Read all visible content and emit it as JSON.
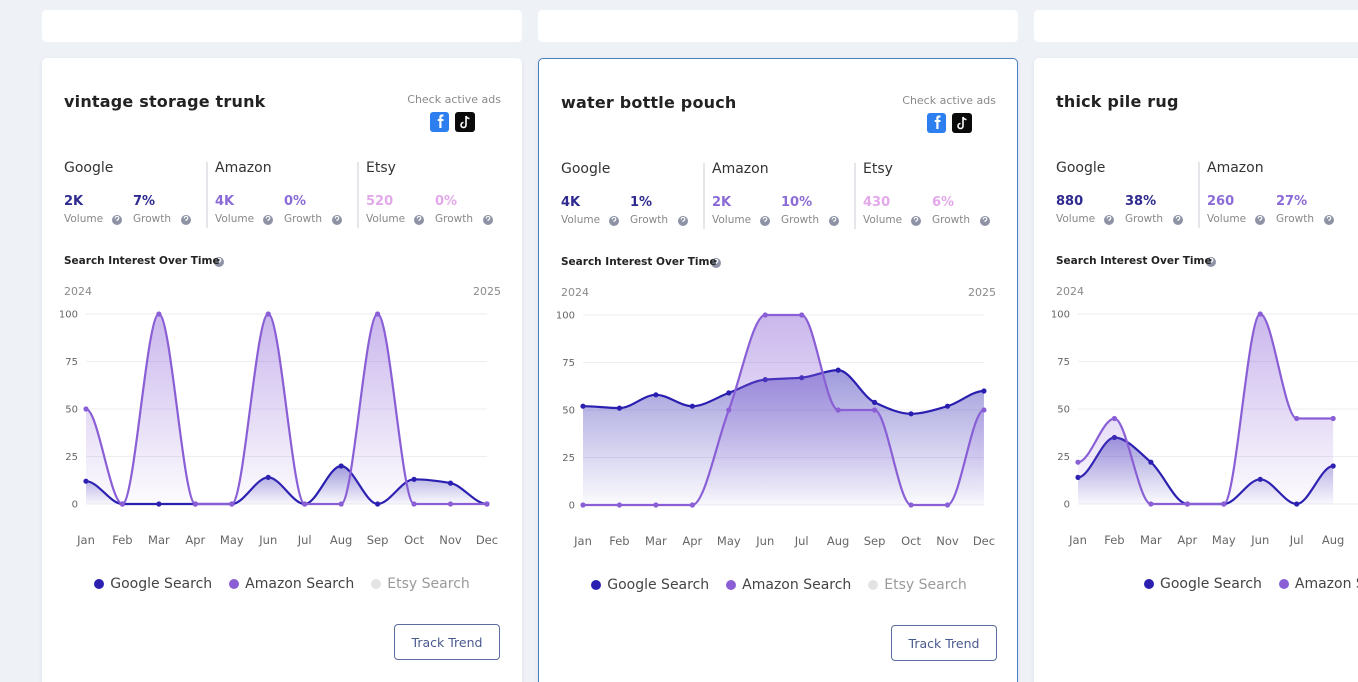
{
  "cards": [
    {
      "title": "vintage storage trunk",
      "ads_label": "Check active ads",
      "metrics": [
        {
          "source": "Google",
          "color": "#2e2a8f",
          "volume": "2K",
          "volume_label": "Volume",
          "growth": "7%",
          "growth_label": "Growth"
        },
        {
          "source": "Amazon",
          "color": "#8b6cd6",
          "volume": "4K",
          "volume_label": "Volume",
          "growth": "0%",
          "growth_label": "Growth"
        },
        {
          "source": "Etsy",
          "color": "#e3a9ea",
          "volume": "520",
          "volume_label": "Volume",
          "growth": "0%",
          "growth_label": "Growth"
        }
      ],
      "chart": {
        "type": "line",
        "title": "Search Interest Over Time",
        "year_start": "2024",
        "year_end": "2025",
        "categories": [
          "Jan",
          "Feb",
          "Mar",
          "Apr",
          "May",
          "Jun",
          "Jul",
          "Aug",
          "Sep",
          "Oct",
          "Nov",
          "Dec"
        ],
        "ylim": [
          0,
          100
        ],
        "yticks": [
          0,
          25,
          50,
          75,
          100
        ],
        "grid": true,
        "series": [
          {
            "name": "Google Search",
            "color": "#2a1fb0",
            "values": [
              12,
              0,
              0,
              0,
              0,
              14,
              0,
              20,
              0,
              13,
              11,
              0
            ]
          },
          {
            "name": "Amazon Search",
            "color": "#8a5fd6",
            "values": [
              50,
              0,
              100,
              0,
              0,
              100,
              0,
              0,
              100,
              0,
              0,
              0
            ]
          },
          {
            "name": "Etsy Search",
            "color": "#e3e3e3"
          }
        ]
      },
      "button": "Track Trend"
    },
    {
      "title": "water bottle pouch",
      "ads_label": "Check active ads",
      "metrics": [
        {
          "source": "Google",
          "color": "#2e2a8f",
          "volume": "4K",
          "volume_label": "Volume",
          "growth": "1%",
          "growth_label": "Growth"
        },
        {
          "source": "Amazon",
          "color": "#8b6cd6",
          "volume": "2K",
          "volume_label": "Volume",
          "growth": "10%",
          "growth_label": "Growth"
        },
        {
          "source": "Etsy",
          "color": "#e3a9ea",
          "volume": "430",
          "volume_label": "Volume",
          "growth": "6%",
          "growth_label": "Growth"
        }
      ],
      "chart": {
        "type": "line",
        "title": "Search Interest Over Time",
        "year_start": "2024",
        "year_end": "2025",
        "categories": [
          "Jan",
          "Feb",
          "Mar",
          "Apr",
          "May",
          "Jun",
          "Jul",
          "Aug",
          "Sep",
          "Oct",
          "Nov",
          "Dec"
        ],
        "ylim": [
          0,
          100
        ],
        "yticks": [
          0,
          25,
          50,
          75,
          100
        ],
        "grid": true,
        "series": [
          {
            "name": "Google Search",
            "color": "#2a1fb0",
            "values": [
              52,
              51,
              58,
              52,
              59,
              66,
              67,
              71,
              54,
              48,
              52,
              60
            ]
          },
          {
            "name": "Amazon Search",
            "color": "#8a5fd6",
            "values": [
              0,
              0,
              0,
              0,
              50,
              100,
              100,
              50,
              50,
              0,
              0,
              50
            ]
          },
          {
            "name": "Etsy Search",
            "color": "#e3e3e3"
          }
        ]
      },
      "button": "Track Trend"
    },
    {
      "title": "thick pile rug",
      "metrics": [
        {
          "source": "Google",
          "color": "#2e2a8f",
          "volume": "880",
          "volume_label": "Volume",
          "growth": "38%",
          "growth_label": "Growth"
        },
        {
          "source": "Amazon",
          "color": "#8b6cd6",
          "volume": "260",
          "volume_label": "Volume",
          "growth": "27%",
          "growth_label": "Growth"
        }
      ],
      "chart": {
        "type": "line",
        "title": "Search Interest Over Time",
        "year_start": "2024",
        "categories": [
          "Jan",
          "Feb",
          "Mar",
          "Apr",
          "May",
          "Jun",
          "Jul",
          "Aug"
        ],
        "ylim": [
          0,
          100
        ],
        "yticks": [
          0,
          25,
          50,
          75,
          100
        ],
        "grid": true,
        "series": [
          {
            "name": "Google Search",
            "color": "#2a1fb0",
            "values": [
              14,
              35,
              22,
              0,
              0,
              13,
              0,
              20
            ]
          },
          {
            "name": "Amazon Search",
            "color": "#8a5fd6",
            "values": [
              22,
              45,
              0,
              0,
              0,
              100,
              45,
              45
            ]
          }
        ]
      }
    }
  ]
}
